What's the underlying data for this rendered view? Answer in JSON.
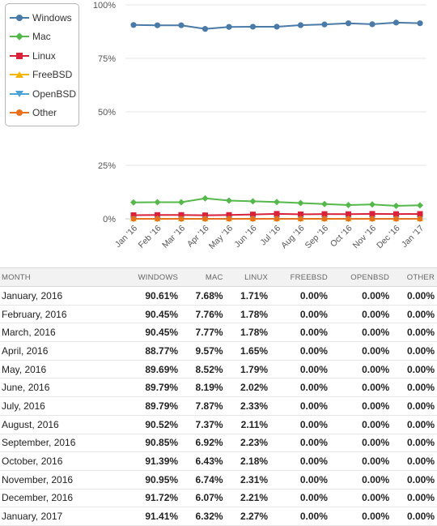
{
  "legend": [
    {
      "name": "Windows",
      "color": "#4a7aa8",
      "marker": "circle"
    },
    {
      "name": "Mac",
      "color": "#55b84b",
      "marker": "diamond"
    },
    {
      "name": "Linux",
      "color": "#d9223a",
      "marker": "square"
    },
    {
      "name": "FreeBSD",
      "color": "#f2b600",
      "marker": "triangle"
    },
    {
      "name": "OpenBSD",
      "color": "#4da3d4",
      "marker": "triangle-down"
    },
    {
      "name": "Other",
      "color": "#e8711c",
      "marker": "circle"
    }
  ],
  "chart_data": {
    "type": "line",
    "categories": [
      "Jan '16",
      "Feb '16",
      "Mar '16",
      "Apr '16",
      "May '16",
      "Jun '16",
      "Jul '16",
      "Aug '16",
      "Sep '16",
      "Oct '16",
      "Nov '16",
      "Dec '16",
      "Jan '17"
    ],
    "y_ticks": [
      "0%",
      "25%",
      "50%",
      "75%",
      "100%"
    ],
    "ylim": [
      0,
      100
    ],
    "legend_position": "top-left",
    "grid": true,
    "series": [
      {
        "name": "Windows",
        "color": "#4a7aa8",
        "values": [
          90.61,
          90.45,
          90.45,
          88.77,
          89.69,
          89.79,
          89.79,
          90.52,
          90.85,
          91.39,
          90.95,
          91.72,
          91.41
        ]
      },
      {
        "name": "Mac",
        "color": "#55b84b",
        "values": [
          7.68,
          7.76,
          7.77,
          9.57,
          8.52,
          8.19,
          7.87,
          7.37,
          6.92,
          6.43,
          6.74,
          6.07,
          6.32
        ]
      },
      {
        "name": "Linux",
        "color": "#d9223a",
        "values": [
          1.71,
          1.78,
          1.78,
          1.65,
          1.79,
          2.02,
          2.33,
          2.11,
          2.23,
          2.18,
          2.31,
          2.21,
          2.27
        ]
      },
      {
        "name": "FreeBSD",
        "color": "#f2b600",
        "values": [
          0,
          0,
          0,
          0,
          0,
          0,
          0,
          0,
          0,
          0,
          0,
          0,
          0
        ]
      },
      {
        "name": "OpenBSD",
        "color": "#4da3d4",
        "values": [
          0,
          0,
          0,
          0,
          0,
          0,
          0,
          0,
          0,
          0,
          0,
          0,
          0
        ]
      },
      {
        "name": "Other",
        "color": "#e8711c",
        "values": [
          0,
          0,
          0,
          0,
          0,
          0,
          0,
          0,
          0,
          0,
          0,
          0,
          0
        ]
      }
    ]
  },
  "table": {
    "headers": [
      "MONTH",
      "WINDOWS",
      "MAC",
      "LINUX",
      "FREEBSD",
      "OPENBSD",
      "OTHER"
    ],
    "rows": [
      [
        "January, 2016",
        "90.61%",
        "7.68%",
        "1.71%",
        "0.00%",
        "0.00%",
        "0.00%"
      ],
      [
        "February, 2016",
        "90.45%",
        "7.76%",
        "1.78%",
        "0.00%",
        "0.00%",
        "0.00%"
      ],
      [
        "March, 2016",
        "90.45%",
        "7.77%",
        "1.78%",
        "0.00%",
        "0.00%",
        "0.00%"
      ],
      [
        "April, 2016",
        "88.77%",
        "9.57%",
        "1.65%",
        "0.00%",
        "0.00%",
        "0.00%"
      ],
      [
        "May, 2016",
        "89.69%",
        "8.52%",
        "1.79%",
        "0.00%",
        "0.00%",
        "0.00%"
      ],
      [
        "June, 2016",
        "89.79%",
        "8.19%",
        "2.02%",
        "0.00%",
        "0.00%",
        "0.00%"
      ],
      [
        "July, 2016",
        "89.79%",
        "7.87%",
        "2.33%",
        "0.00%",
        "0.00%",
        "0.00%"
      ],
      [
        "August, 2016",
        "90.52%",
        "7.37%",
        "2.11%",
        "0.00%",
        "0.00%",
        "0.00%"
      ],
      [
        "September, 2016",
        "90.85%",
        "6.92%",
        "2.23%",
        "0.00%",
        "0.00%",
        "0.00%"
      ],
      [
        "October, 2016",
        "91.39%",
        "6.43%",
        "2.18%",
        "0.00%",
        "0.00%",
        "0.00%"
      ],
      [
        "November, 2016",
        "90.95%",
        "6.74%",
        "2.31%",
        "0.00%",
        "0.00%",
        "0.00%"
      ],
      [
        "December, 2016",
        "91.72%",
        "6.07%",
        "2.21%",
        "0.00%",
        "0.00%",
        "0.00%"
      ],
      [
        "January, 2017",
        "91.41%",
        "6.32%",
        "2.27%",
        "0.00%",
        "0.00%",
        "0.00%"
      ]
    ]
  }
}
